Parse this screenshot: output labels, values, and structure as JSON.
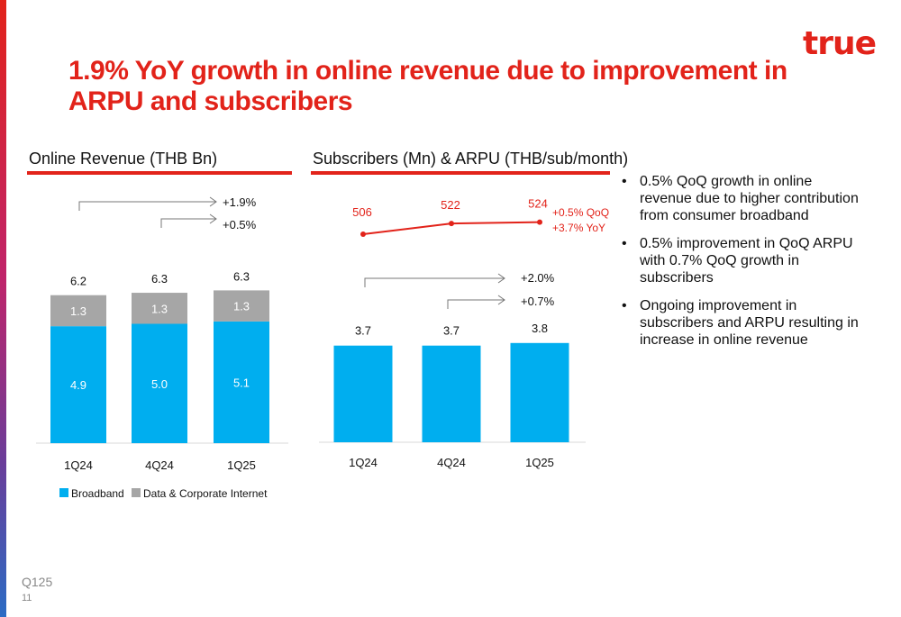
{
  "logo": "true",
  "title": "1.9% YoY growth in online revenue due to improvement in ARPU and subscribers",
  "colors": {
    "accent": "#e2231a",
    "broadband": "#00aeef",
    "data_corporate": "#a6a6a6",
    "arpu_line": "#e2231a"
  },
  "chart_data": [
    {
      "type": "bar",
      "stacked": true,
      "title": "Online Revenue (THB Bn)",
      "categories": [
        "1Q24",
        "4Q24",
        "1Q25"
      ],
      "series": [
        {
          "name": "Broadband",
          "values": [
            4.9,
            5.0,
            5.1
          ]
        },
        {
          "name": "Data & Corporate Internet",
          "values": [
            1.3,
            1.3,
            1.3
          ]
        }
      ],
      "totals": [
        "6.2",
        "6.3",
        "6.3"
      ],
      "labels": {
        "Broadband": [
          "4.9",
          "5.0",
          "5.1"
        ],
        "Data & Corporate Internet": [
          "1.3",
          "1.3",
          "1.3"
        ]
      },
      "annotations": [
        "+1.9%",
        "+0.5%"
      ],
      "ylim": [
        0,
        7
      ],
      "legend": "bottom"
    },
    {
      "type": "bar",
      "title": "Subscribers (Mn) & ARPU (THB/sub/month)",
      "categories": [
        "1Q24",
        "4Q24",
        "1Q25"
      ],
      "series": [
        {
          "values": [
            3.7,
            3.7,
            3.8
          ]
        }
      ],
      "value_labels": [
        "3.7",
        "3.7",
        "3.8"
      ],
      "line": {
        "values": [
          506,
          522,
          524
        ],
        "labels": [
          "506",
          "522",
          "524"
        ]
      },
      "annotations": [
        "+2.0%",
        "+0.7%"
      ],
      "line_annotations": [
        "+0.5% QoQ",
        "+3.7% YoY"
      ],
      "ylim": [
        0,
        4.5
      ]
    }
  ],
  "bullets": [
    "0.5% QoQ growth in online revenue due to higher contribution from consumer broadband",
    "0.5% improvement in QoQ ARPU with 0.7% QoQ growth in subscribers",
    "Ongoing improvement in subscribers and ARPU resulting in increase in online revenue"
  ],
  "bullet_glyph": "•",
  "footer": {
    "quarter": "Q125",
    "page": "11"
  }
}
